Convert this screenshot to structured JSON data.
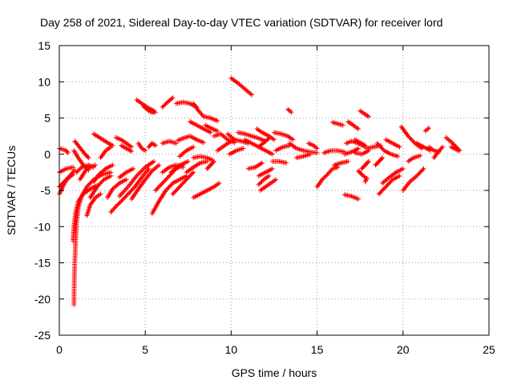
{
  "chart_data": {
    "type": "scatter",
    "title": "Day 258 of 2021, Sidereal Day-to-day VTEC variation (SDTVAR) for receiver lord",
    "xlabel": "GPS time / hours",
    "ylabel": "SDTVAR / TECUs",
    "xlim": [
      0,
      25
    ],
    "ylim": [
      -25,
      15
    ],
    "x_ticks": [
      0,
      5,
      10,
      15,
      20,
      25
    ],
    "x_tick_labels": [
      "0",
      "5",
      "10",
      "15",
      "20",
      "25"
    ],
    "y_ticks": [
      -25,
      -20,
      -15,
      -10,
      -5,
      0,
      5,
      10,
      15
    ],
    "y_tick_labels": [
      "-25",
      "-20",
      "-15",
      "-10",
      "-5",
      "0",
      "5",
      "10",
      "15"
    ],
    "grid": true,
    "marker": "+",
    "series_color": "#ff0000",
    "tracks": [
      [
        [
          0.0,
          -2.5
        ],
        [
          0.4,
          -2.0
        ],
        [
          0.8,
          -1.8
        ]
      ],
      [
        [
          0.0,
          0.8
        ],
        [
          0.4,
          0.5
        ],
        [
          0.5,
          0.2
        ]
      ],
      [
        [
          0.0,
          -5.5
        ],
        [
          0.3,
          -4.0
        ],
        [
          0.6,
          -3.0
        ],
        [
          0.9,
          -2.2
        ]
      ],
      [
        [
          0.0,
          -4.5
        ],
        [
          0.4,
          -3.5
        ],
        [
          0.8,
          -2.8
        ]
      ],
      [
        [
          0.85,
          -20.8
        ],
        [
          0.87,
          -18.0
        ],
        [
          0.9,
          -15.0
        ],
        [
          0.95,
          -12.0
        ],
        [
          1.0,
          -9.5
        ],
        [
          1.1,
          -7.5
        ],
        [
          1.3,
          -5.8
        ],
        [
          1.6,
          -4.5
        ],
        [
          2.0,
          -3.5
        ],
        [
          2.5,
          -2.8
        ],
        [
          3.0,
          -2.5
        ]
      ],
      [
        [
          0.8,
          -12.0
        ],
        [
          0.85,
          -10.0
        ],
        [
          0.95,
          -8.0
        ],
        [
          1.1,
          -6.5
        ],
        [
          1.4,
          -5.5
        ],
        [
          1.8,
          -4.8
        ],
        [
          2.2,
          -4.3
        ]
      ],
      [
        [
          0.9,
          1.8
        ],
        [
          1.1,
          1.2
        ],
        [
          1.3,
          0.6
        ],
        [
          1.5,
          0.0
        ],
        [
          1.7,
          -0.5
        ]
      ],
      [
        [
          0.85,
          0.5
        ],
        [
          1.1,
          -0.5
        ],
        [
          1.4,
          -1.5
        ],
        [
          1.7,
          -2.2
        ]
      ],
      [
        [
          1.0,
          -2.5
        ],
        [
          1.3,
          -1.8
        ],
        [
          1.7,
          -1.5
        ],
        [
          2.0,
          -1.8
        ]
      ],
      [
        [
          1.2,
          -3.5
        ],
        [
          1.6,
          -2.0
        ],
        [
          2.1,
          -1.5
        ]
      ],
      [
        [
          1.6,
          -8.5
        ],
        [
          1.8,
          -7.0
        ],
        [
          2.1,
          -6.0
        ],
        [
          2.4,
          -5.5
        ]
      ],
      [
        [
          1.8,
          -6.0
        ],
        [
          2.2,
          -4.5
        ],
        [
          2.6,
          -3.5
        ],
        [
          3.0,
          -3.0
        ]
      ],
      [
        [
          2.0,
          2.8
        ],
        [
          2.4,
          2.2
        ],
        [
          2.8,
          1.6
        ],
        [
          3.1,
          1.2
        ]
      ],
      [
        [
          2.4,
          -0.5
        ],
        [
          2.7,
          0.5
        ],
        [
          3.0,
          1.0
        ]
      ],
      [
        [
          2.0,
          -3.8
        ],
        [
          2.3,
          -2.8
        ],
        [
          2.7,
          -2.0
        ],
        [
          3.1,
          -1.5
        ]
      ],
      [
        [
          2.8,
          -6.0
        ],
        [
          3.1,
          -4.8
        ],
        [
          3.5,
          -4.0
        ],
        [
          3.9,
          -3.5
        ]
      ],
      [
        [
          3.0,
          -8.0
        ],
        [
          3.3,
          -7.2
        ],
        [
          3.6,
          -6.5
        ],
        [
          4.0,
          -5.5
        ],
        [
          4.4,
          -4.5
        ],
        [
          4.8,
          -3.2
        ],
        [
          5.2,
          -2.0
        ]
      ],
      [
        [
          3.3,
          2.3
        ],
        [
          3.6,
          2.0
        ],
        [
          3.9,
          1.5
        ],
        [
          4.2,
          1.0
        ]
      ],
      [
        [
          3.5,
          -3.2
        ],
        [
          3.9,
          -2.5
        ],
        [
          4.3,
          -2.0
        ]
      ],
      [
        [
          3.5,
          -5.8
        ],
        [
          4.0,
          -4.5
        ],
        [
          4.5,
          -3.0
        ],
        [
          5.0,
          -1.8
        ],
        [
          5.5,
          -1.0
        ]
      ],
      [
        [
          3.6,
          1.2
        ],
        [
          3.9,
          0.8
        ],
        [
          4.2,
          0.4
        ]
      ],
      [
        [
          4.2,
          -6.2
        ],
        [
          4.6,
          -4.8
        ],
        [
          5.0,
          -3.5
        ],
        [
          5.4,
          -2.3
        ],
        [
          5.8,
          -1.5
        ]
      ],
      [
        [
          4.5,
          7.5
        ],
        [
          4.8,
          7.0
        ],
        [
          5.1,
          6.5
        ],
        [
          5.5,
          6.0
        ]
      ],
      [
        [
          4.6,
          1.5
        ],
        [
          4.8,
          0.8
        ],
        [
          5.0,
          0.5
        ]
      ],
      [
        [
          4.9,
          6.6
        ],
        [
          5.2,
          6.0
        ],
        [
          5.5,
          5.8
        ]
      ],
      [
        [
          5.2,
          1.0
        ],
        [
          5.4,
          1.5
        ],
        [
          5.6,
          1.2
        ]
      ],
      [
        [
          5.4,
          -8.2
        ],
        [
          5.8,
          -6.5
        ],
        [
          6.2,
          -5.0
        ],
        [
          6.6,
          -4.0
        ],
        [
          7.0,
          -3.5
        ],
        [
          7.4,
          -3.0
        ]
      ],
      [
        [
          5.6,
          -5.0
        ],
        [
          6.0,
          -4.0
        ],
        [
          6.4,
          -3.0
        ],
        [
          6.8,
          -2.0
        ],
        [
          7.2,
          -1.5
        ]
      ],
      [
        [
          5.3,
          5.9
        ],
        [
          5.6,
          5.8
        ]
      ],
      [
        [
          6.0,
          6.5
        ],
        [
          6.3,
          7.2
        ],
        [
          6.6,
          7.8
        ]
      ],
      [
        [
          6.0,
          1.5
        ],
        [
          6.4,
          1.8
        ],
        [
          6.8,
          1.5
        ]
      ],
      [
        [
          6.0,
          -2.5
        ],
        [
          6.4,
          -1.8
        ],
        [
          6.8,
          -1.5
        ],
        [
          7.2,
          -1.8
        ]
      ],
      [
        [
          6.5,
          -2.5
        ],
        [
          7.0,
          -1.5
        ],
        [
          7.5,
          -1.0
        ]
      ],
      [
        [
          6.6,
          -5.5
        ],
        [
          7.0,
          -4.5
        ],
        [
          7.4,
          -3.5
        ],
        [
          7.8,
          -2.5
        ]
      ],
      [
        [
          6.8,
          7.0
        ],
        [
          7.2,
          7.2
        ],
        [
          7.6,
          7.0
        ],
        [
          8.0,
          6.5
        ]
      ],
      [
        [
          6.9,
          1.9
        ],
        [
          7.2,
          2.2
        ],
        [
          7.6,
          2.5
        ],
        [
          8.0,
          2.0
        ],
        [
          8.4,
          1.6
        ]
      ],
      [
        [
          7.0,
          -0.3
        ],
        [
          7.4,
          0.5
        ],
        [
          7.8,
          1.0
        ]
      ],
      [
        [
          7.4,
          -2.5
        ],
        [
          7.8,
          -1.8
        ],
        [
          8.2,
          -1.2
        ],
        [
          8.6,
          -1.0
        ]
      ],
      [
        [
          7.8,
          7.0
        ],
        [
          8.1,
          6.0
        ],
        [
          8.4,
          5.2
        ],
        [
          8.8,
          5.0
        ],
        [
          9.2,
          4.6
        ]
      ],
      [
        [
          7.6,
          4.5
        ],
        [
          8.0,
          4.0
        ],
        [
          8.4,
          3.5
        ],
        [
          8.8,
          3.0
        ]
      ],
      [
        [
          7.8,
          -0.5
        ],
        [
          8.2,
          -0.3
        ],
        [
          8.6,
          -0.5
        ],
        [
          8.9,
          -0.8
        ]
      ],
      [
        [
          7.8,
          -6.0
        ],
        [
          8.2,
          -5.5
        ],
        [
          8.6,
          -5.0
        ],
        [
          9.0,
          -4.5
        ],
        [
          9.3,
          -4.0
        ]
      ],
      [
        [
          8.5,
          4.0
        ],
        [
          8.9,
          3.5
        ],
        [
          9.2,
          3.2
        ]
      ],
      [
        [
          8.6,
          -2.0
        ],
        [
          8.8,
          -1.5
        ],
        [
          9.0,
          -1.0
        ]
      ],
      [
        [
          9.0,
          2.5
        ],
        [
          9.4,
          2.8
        ],
        [
          9.8,
          2.0
        ],
        [
          10.2,
          1.6
        ]
      ],
      [
        [
          9.2,
          0.5
        ],
        [
          9.5,
          1.0
        ],
        [
          9.8,
          1.5
        ],
        [
          10.2,
          2.0
        ]
      ],
      [
        [
          9.8,
          2.8
        ],
        [
          10.2,
          2.0
        ],
        [
          10.6,
          1.8
        ],
        [
          11.0,
          1.5
        ]
      ],
      [
        [
          9.9,
          0.0
        ],
        [
          10.3,
          0.5
        ],
        [
          10.7,
          0.8
        ]
      ],
      [
        [
          10.0,
          10.5
        ],
        [
          10.4,
          9.8
        ],
        [
          10.8,
          9.0
        ],
        [
          11.2,
          8.2
        ]
      ],
      [
        [
          10.4,
          3.0
        ],
        [
          10.8,
          2.8
        ],
        [
          11.2,
          2.5
        ],
        [
          11.6,
          2.2
        ],
        [
          12.0,
          1.8
        ]
      ],
      [
        [
          10.8,
          2.0
        ],
        [
          11.2,
          1.5
        ],
        [
          11.6,
          1.0
        ],
        [
          12.0,
          0.5
        ],
        [
          12.4,
          0.0
        ]
      ],
      [
        [
          11.0,
          -2.0
        ],
        [
          11.4,
          -1.8
        ],
        [
          11.8,
          -1.2
        ]
      ],
      [
        [
          11.5,
          3.5
        ],
        [
          11.8,
          3.0
        ],
        [
          12.2,
          2.5
        ],
        [
          12.5,
          2.0
        ]
      ],
      [
        [
          11.6,
          1.0
        ],
        [
          11.9,
          1.6
        ],
        [
          12.2,
          2.2
        ]
      ],
      [
        [
          11.6,
          -3.0
        ],
        [
          12.0,
          -2.5
        ],
        [
          12.4,
          -2.0
        ]
      ],
      [
        [
          11.7,
          -5.0
        ],
        [
          12.0,
          -4.5
        ],
        [
          12.3,
          -4.0
        ],
        [
          12.6,
          -3.5
        ]
      ],
      [
        [
          11.6,
          -4.2
        ],
        [
          11.9,
          -3.5
        ],
        [
          12.2,
          -3.0
        ]
      ],
      [
        [
          12.5,
          3.0
        ],
        [
          12.9,
          2.8
        ],
        [
          13.3,
          2.5
        ],
        [
          13.6,
          2.0
        ]
      ],
      [
        [
          12.4,
          -1.0
        ],
        [
          12.8,
          -1.0
        ],
        [
          13.2,
          -1.2
        ]
      ],
      [
        [
          12.6,
          0.5
        ],
        [
          13.0,
          1.0
        ],
        [
          13.4,
          1.2
        ]
      ],
      [
        [
          13.3,
          6.2
        ],
        [
          13.5,
          5.8
        ]
      ],
      [
        [
          13.4,
          1.5
        ],
        [
          13.8,
          0.8
        ],
        [
          14.2,
          0.5
        ],
        [
          14.6,
          0.3
        ],
        [
          15.0,
          0.2
        ]
      ],
      [
        [
          13.8,
          -0.5
        ],
        [
          14.2,
          -0.3
        ],
        [
          14.6,
          0.0
        ]
      ],
      [
        [
          14.5,
          1.5
        ],
        [
          14.8,
          1.2
        ],
        [
          15.0,
          0.8
        ]
      ],
      [
        [
          15.0,
          -4.5
        ],
        [
          15.3,
          -3.5
        ],
        [
          15.6,
          -2.8
        ],
        [
          15.9,
          -2.0
        ],
        [
          16.2,
          -1.8
        ]
      ],
      [
        [
          15.4,
          0.2
        ],
        [
          15.8,
          0.5
        ],
        [
          16.2,
          0.5
        ],
        [
          16.6,
          0.3
        ]
      ],
      [
        [
          15.9,
          4.4
        ],
        [
          16.2,
          4.2
        ],
        [
          16.5,
          4.0
        ]
      ],
      [
        [
          16.0,
          -1.5
        ],
        [
          16.4,
          -1.2
        ],
        [
          16.8,
          -1.0
        ]
      ],
      [
        [
          16.6,
          0.0
        ],
        [
          17.0,
          0.3
        ],
        [
          17.4,
          0.8
        ]
      ],
      [
        [
          16.7,
          1.5
        ],
        [
          17.0,
          1.8
        ],
        [
          17.4,
          1.5
        ],
        [
          17.8,
          1.0
        ]
      ],
      [
        [
          16.6,
          -5.6
        ],
        [
          17.0,
          -5.8
        ],
        [
          17.4,
          -6.2
        ]
      ],
      [
        [
          16.8,
          4.5
        ],
        [
          17.1,
          4.0
        ],
        [
          17.4,
          3.5
        ]
      ],
      [
        [
          17.2,
          2.0
        ],
        [
          17.5,
          1.6
        ],
        [
          17.8,
          1.2
        ]
      ],
      [
        [
          17.5,
          6.0
        ],
        [
          17.8,
          5.5
        ],
        [
          18.0,
          5.2
        ]
      ],
      [
        [
          17.2,
          0.2
        ],
        [
          17.6,
          0.0
        ],
        [
          18.0,
          0.5
        ]
      ],
      [
        [
          17.4,
          -2.3
        ],
        [
          17.6,
          -2.8
        ],
        [
          17.8,
          -3.2
        ]
      ],
      [
        [
          17.6,
          -2.0
        ],
        [
          17.8,
          -1.5
        ],
        [
          18.0,
          -1.0
        ]
      ],
      [
        [
          17.8,
          -3.8
        ],
        [
          17.9,
          -3.3
        ]
      ],
      [
        [
          17.9,
          0.8
        ],
        [
          18.3,
          1.0
        ],
        [
          18.7,
          1.2
        ]
      ],
      [
        [
          18.6,
          -5.5
        ],
        [
          19.0,
          -4.5
        ],
        [
          19.4,
          -3.5
        ],
        [
          19.8,
          -3.0
        ]
      ],
      [
        [
          18.8,
          -4.0
        ],
        [
          19.2,
          -3.2
        ],
        [
          19.6,
          -2.5
        ],
        [
          20.0,
          -2.0
        ]
      ],
      [
        [
          18.5,
          1.5
        ],
        [
          18.9,
          0.5
        ],
        [
          19.3,
          0.0
        ],
        [
          19.7,
          -0.3
        ]
      ],
      [
        [
          19.0,
          2.0
        ],
        [
          19.4,
          1.5
        ],
        [
          19.8,
          1.0
        ]
      ],
      [
        [
          18.4,
          -1.5
        ],
        [
          18.6,
          -1.0
        ],
        [
          18.8,
          -0.5
        ]
      ],
      [
        [
          19.9,
          3.8
        ],
        [
          20.3,
          2.5
        ],
        [
          20.7,
          1.5
        ],
        [
          21.1,
          0.8
        ]
      ],
      [
        [
          20.0,
          -5.0
        ],
        [
          20.4,
          -3.8
        ],
        [
          20.8,
          -3.0
        ],
        [
          21.2,
          -2.0
        ]
      ],
      [
        [
          20.3,
          -1.0
        ],
        [
          20.6,
          -0.5
        ],
        [
          21.0,
          -0.2
        ]
      ],
      [
        [
          20.8,
          1.5
        ],
        [
          21.2,
          1.0
        ],
        [
          21.6,
          0.5
        ]
      ],
      [
        [
          21.3,
          3.2
        ],
        [
          21.5,
          3.6
        ]
      ],
      [
        [
          21.5,
          1.0
        ],
        [
          21.8,
          0.5
        ],
        [
          22.1,
          0.3
        ]
      ],
      [
        [
          21.8,
          -0.5
        ],
        [
          22.0,
          0.2
        ],
        [
          22.3,
          1.0
        ]
      ],
      [
        [
          22.5,
          2.3
        ],
        [
          22.9,
          1.5
        ],
        [
          23.3,
          0.5
        ]
      ],
      [
        [
          22.8,
          1.0
        ],
        [
          23.0,
          0.8
        ],
        [
          23.2,
          0.5
        ]
      ]
    ]
  }
}
